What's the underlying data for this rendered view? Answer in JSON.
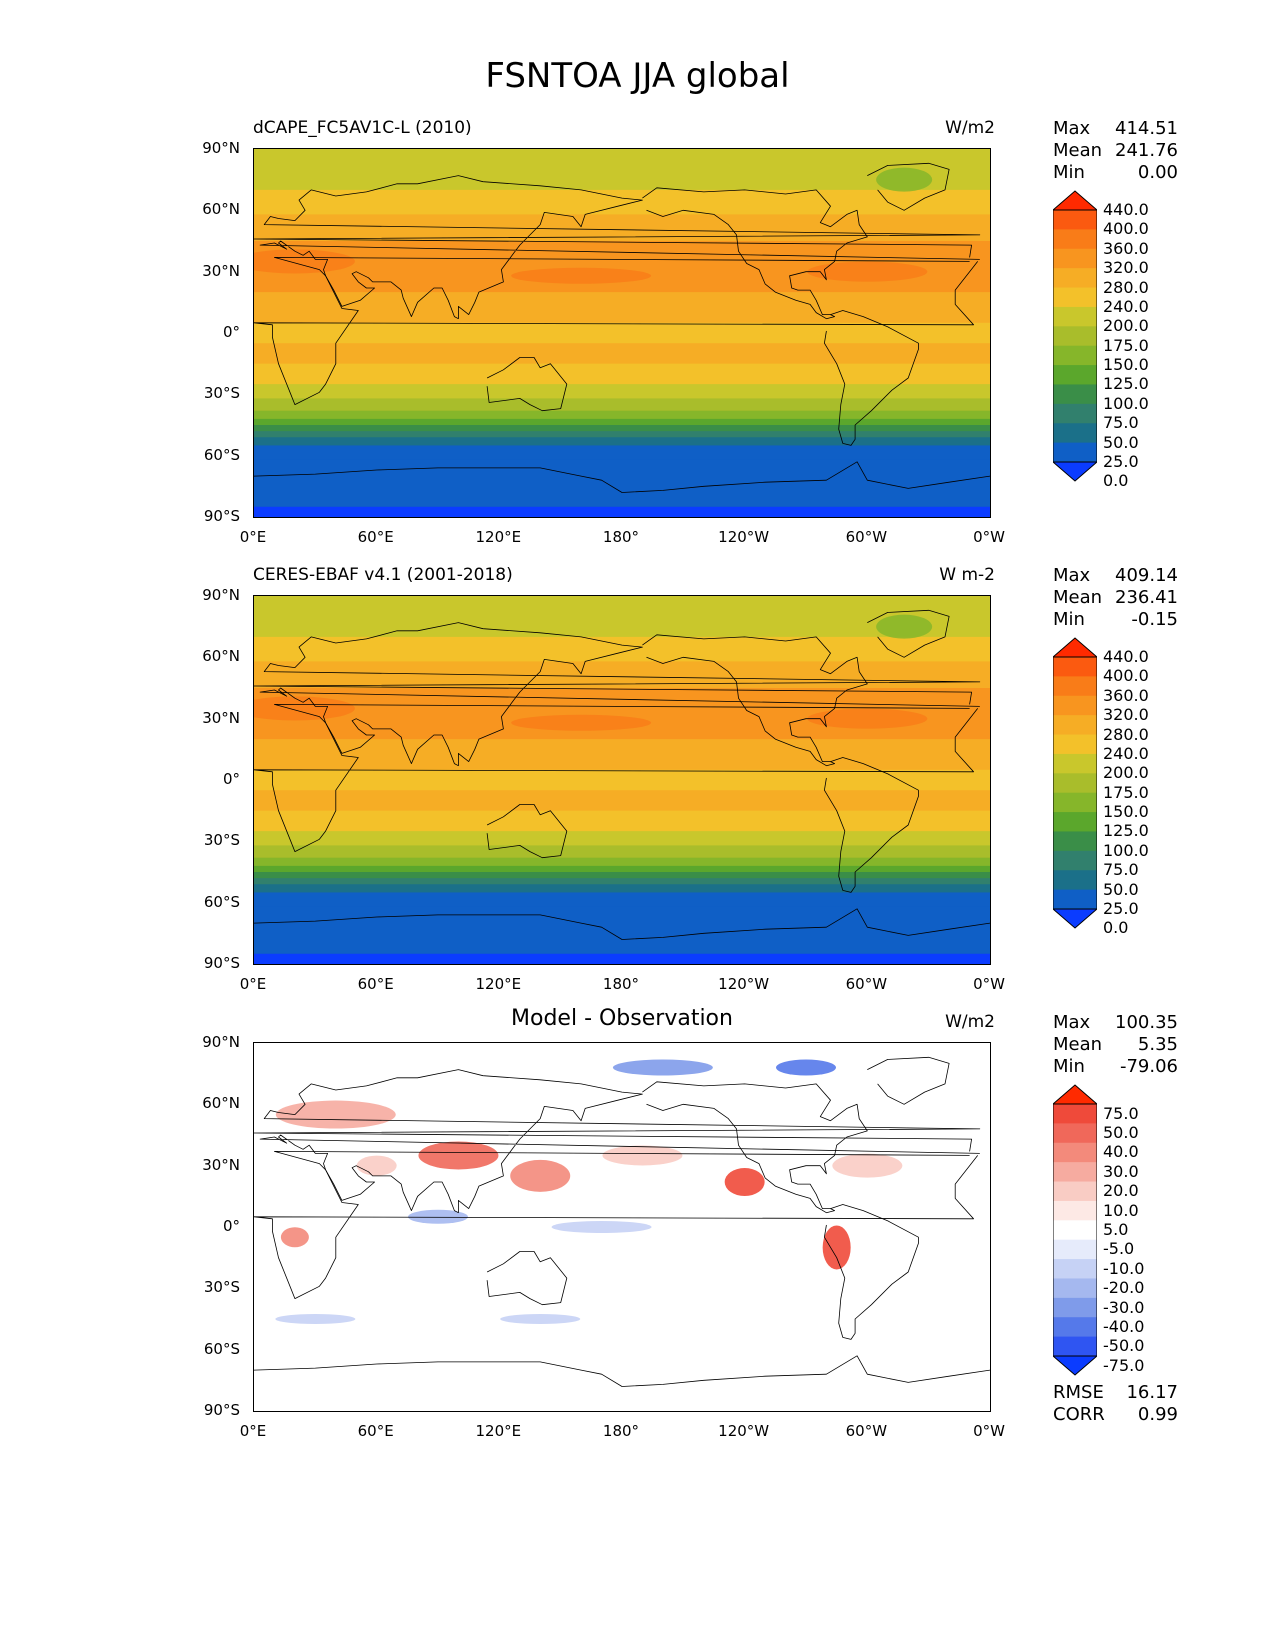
{
  "figure_title": "FSNTOA JJA global",
  "axes": {
    "lat_labels": [
      "90°N",
      "60°N",
      "30°N",
      "0°",
      "30°S",
      "60°S",
      "90°S"
    ],
    "lon_labels": [
      "0°E",
      "60°E",
      "120°E",
      "180°",
      "120°W",
      "60°W",
      "0°W"
    ]
  },
  "panels": [
    {
      "title": "dCAPE_FC5AV1C-L (2010)",
      "title_centered": false,
      "units": "W/m2",
      "stats": [
        {
          "label": "Max",
          "value": "414.51"
        },
        {
          "label": "Mean",
          "value": "241.76"
        },
        {
          "label": "Min",
          "value": "0.00"
        }
      ],
      "colorbar_labels": [
        "440.0",
        "400.0",
        "360.0",
        "320.0",
        "280.0",
        "240.0",
        "200.0",
        "175.0",
        "150.0",
        "125.0",
        "100.0",
        "75.0",
        "50.0",
        "25.0",
        "0.0"
      ],
      "colorbar_colors": [
        "#ff2a00",
        "#fb5a10",
        "#f97c18",
        "#f8951f",
        "#f6ad25",
        "#f3c12a",
        "#c9c72c",
        "#a9bd2b",
        "#86b62a",
        "#5ba72c",
        "#3a8e48",
        "#31806d",
        "#1b7089",
        "#0f5fc6",
        "#0b3cff"
      ],
      "extra": []
    },
    {
      "title": "CERES-EBAF v4.1 (2001-2018)",
      "title_centered": false,
      "units": "W m-2",
      "stats": [
        {
          "label": "Max",
          "value": "409.14"
        },
        {
          "label": "Mean",
          "value": "236.41"
        },
        {
          "label": "Min",
          "value": "-0.15"
        }
      ],
      "colorbar_labels": [
        "440.0",
        "400.0",
        "360.0",
        "320.0",
        "280.0",
        "240.0",
        "200.0",
        "175.0",
        "150.0",
        "125.0",
        "100.0",
        "75.0",
        "50.0",
        "25.0",
        "0.0"
      ],
      "colorbar_colors": [
        "#ff2a00",
        "#fb5a10",
        "#f97c18",
        "#f8951f",
        "#f6ad25",
        "#f3c12a",
        "#c9c72c",
        "#a9bd2b",
        "#86b62a",
        "#5ba72c",
        "#3a8e48",
        "#31806d",
        "#1b7089",
        "#0f5fc6",
        "#0b3cff"
      ],
      "extra": []
    },
    {
      "title": "Model - Observation",
      "title_centered": true,
      "units": "W/m2",
      "stats": [
        {
          "label": "Max",
          "value": "100.35"
        },
        {
          "label": "Mean",
          "value": "5.35"
        },
        {
          "label": "Min",
          "value": "-79.06"
        }
      ],
      "colorbar_labels": [
        "75.0",
        "50.0",
        "40.0",
        "30.0",
        "20.0",
        "10.0",
        "5.0",
        "-5.0",
        "-10.0",
        "-20.0",
        "-30.0",
        "-40.0",
        "-50.0",
        "-75.0"
      ],
      "colorbar_colors": [
        "#ff2a00",
        "#ef4a3a",
        "#f0685a",
        "#f38a7b",
        "#f6aba0",
        "#f9ccc4",
        "#fde9e5",
        "#ffffff",
        "#e6ebfb",
        "#c6d2f5",
        "#a5b8ef",
        "#7f9bea",
        "#5579ea",
        "#2f55f2",
        "#0b3cff"
      ],
      "extra": [
        {
          "label": "RMSE",
          "value": "16.17"
        },
        {
          "label": "CORR",
          "value": "0.99"
        }
      ]
    }
  ]
}
